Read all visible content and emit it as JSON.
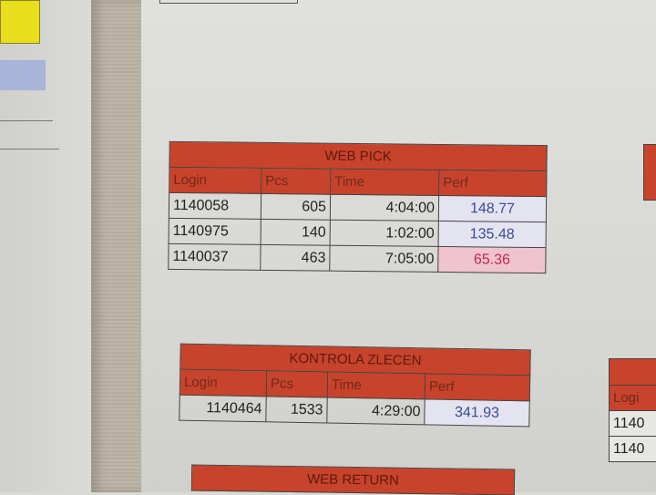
{
  "web_pick": {
    "title": "WEB PICK",
    "headers": [
      "Login",
      "Pcs",
      "Time",
      "Perf"
    ],
    "rows": [
      [
        "1140058",
        "605",
        "4:04:00",
        "148.77"
      ],
      [
        "1140975",
        "140",
        "1:02:00",
        "135.48"
      ],
      [
        "1140037",
        "463",
        "7:05:00",
        "65.36"
      ]
    ]
  },
  "kontrola": {
    "title": "KONTROLA ZLECEN",
    "headers": [
      "Login",
      "Pcs",
      "Time",
      "Perf"
    ],
    "rows": [
      [
        "1140464",
        "1533",
        "4:29:00",
        "341.93"
      ]
    ]
  },
  "web_return": {
    "title": "WEB RETURN"
  },
  "right_table": {
    "header": "Logi",
    "rows": [
      "1140",
      "1140"
    ]
  },
  "colors": {
    "header_red": "#c8432b",
    "perf_good": "#3a4a9a",
    "perf_bad_bg": "#f0c4cf"
  }
}
